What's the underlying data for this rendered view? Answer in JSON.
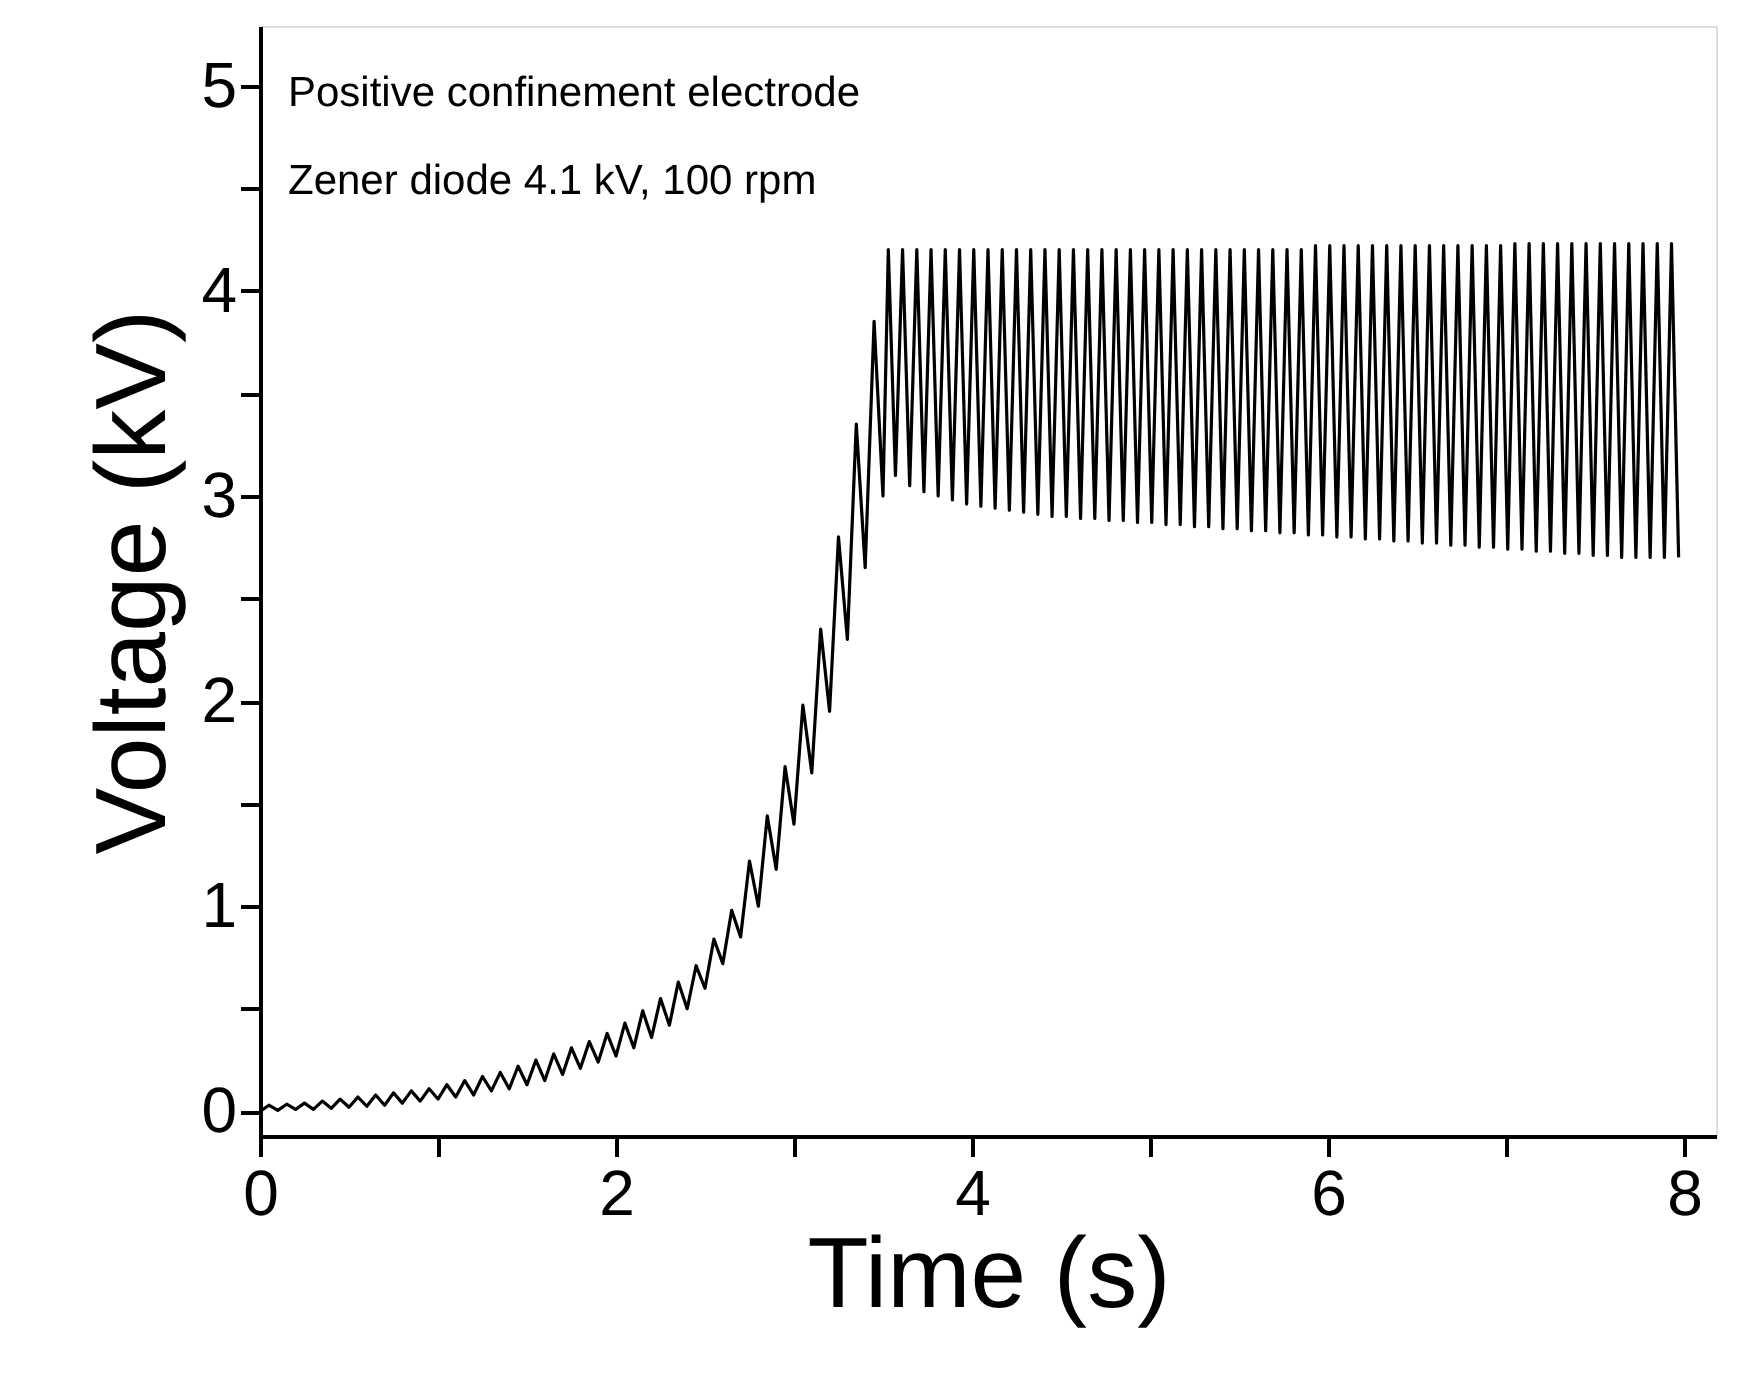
{
  "chart_data": {
    "type": "line",
    "xlabel": "Time (s)",
    "ylabel": "Voltage (kV)",
    "annotations": [
      "Positive confinement electrode",
      "Zener diode  4.1 kV, 100 rpm"
    ],
    "xlim": [
      0,
      8.18
    ],
    "ylim": [
      -0.12,
      5.29
    ],
    "xticks": [
      0,
      {
        "value": 1,
        "label": null
      },
      2,
      {
        "value": 3,
        "label": null
      },
      4,
      {
        "value": 5,
        "label": null
      },
      6,
      {
        "value": 7,
        "label": null
      },
      8
    ],
    "yticks": [
      0,
      {
        "value": 0.5,
        "label": null
      },
      1,
      {
        "value": 1.5,
        "label": null
      },
      2,
      {
        "value": 2.5,
        "label": null
      },
      3,
      {
        "value": 3.5,
        "label": null
      },
      4,
      {
        "value": 4.5,
        "label": null
      },
      5
    ],
    "grid": false,
    "series": [
      {
        "color": "#000000",
        "x": [
          0,
          0.05,
          0.1,
          0.15,
          0.2,
          0.25,
          0.3,
          0.35,
          0.4,
          0.45,
          0.5,
          0.55,
          0.6,
          0.65,
          0.7,
          0.75,
          0.8,
          0.85,
          0.9,
          0.95,
          1.0,
          1.05,
          1.1,
          1.15,
          1.2,
          1.25,
          1.3,
          1.35,
          1.4,
          1.45,
          1.5,
          1.55,
          1.6,
          1.65,
          1.7,
          1.75,
          1.8,
          1.85,
          1.9,
          1.95,
          2.0,
          2.05,
          2.1,
          2.15,
          2.2,
          2.25,
          2.3,
          2.35,
          2.4,
          2.45,
          2.5,
          2.55,
          2.6,
          2.65,
          2.7,
          2.75,
          2.8,
          2.85,
          2.9,
          2.95,
          3.0,
          3.05,
          3.1,
          3.15,
          3.2,
          3.25,
          3.3,
          3.35,
          3.4,
          3.45,
          3.5,
          3.53,
          3.57,
          3.61,
          3.65,
          3.69,
          3.73,
          3.77,
          3.81,
          3.85,
          3.89,
          3.93,
          3.97,
          4.01,
          4.05,
          4.09,
          4.13,
          4.17,
          4.21,
          4.25,
          4.29,
          4.33,
          4.37,
          4.41,
          4.45,
          4.49,
          4.53,
          4.57,
          4.61,
          4.65,
          4.69,
          4.73,
          4.77,
          4.81,
          4.85,
          4.89,
          4.93,
          4.97,
          5.01,
          5.05,
          5.09,
          5.13,
          5.17,
          5.21,
          5.25,
          5.29,
          5.33,
          5.37,
          5.41,
          5.45,
          5.49,
          5.53,
          5.57,
          5.61,
          5.65,
          5.69,
          5.73,
          5.77,
          5.81,
          5.85,
          5.89,
          5.93,
          5.97,
          6.01,
          6.05,
          6.09,
          6.13,
          6.17,
          6.21,
          6.25,
          6.29,
          6.33,
          6.37,
          6.41,
          6.45,
          6.49,
          6.53,
          6.57,
          6.61,
          6.65,
          6.69,
          6.73,
          6.77,
          6.81,
          6.85,
          6.89,
          6.93,
          6.97,
          7.01,
          7.05,
          7.09,
          7.13,
          7.17,
          7.21,
          7.25,
          7.29,
          7.33,
          7.37,
          7.41,
          7.45,
          7.49,
          7.53,
          7.57,
          7.61,
          7.65,
          7.69,
          7.73,
          7.77,
          7.81,
          7.85,
          7.89,
          7.93,
          7.97
        ],
        "values": [
          0.0,
          0.03,
          0.005,
          0.035,
          0.01,
          0.04,
          0.01,
          0.05,
          0.015,
          0.06,
          0.02,
          0.07,
          0.025,
          0.08,
          0.03,
          0.09,
          0.04,
          0.1,
          0.05,
          0.11,
          0.06,
          0.13,
          0.07,
          0.15,
          0.08,
          0.17,
          0.1,
          0.19,
          0.11,
          0.22,
          0.13,
          0.25,
          0.15,
          0.28,
          0.18,
          0.31,
          0.21,
          0.34,
          0.24,
          0.38,
          0.27,
          0.43,
          0.31,
          0.49,
          0.36,
          0.55,
          0.42,
          0.63,
          0.5,
          0.71,
          0.6,
          0.84,
          0.72,
          0.98,
          0.85,
          1.22,
          1.0,
          1.44,
          1.18,
          1.68,
          1.4,
          1.98,
          1.65,
          2.35,
          1.95,
          2.8,
          2.3,
          3.35,
          2.65,
          3.85,
          3.0,
          4.2,
          3.1,
          4.2,
          3.05,
          4.2,
          3.02,
          4.2,
          3.0,
          4.2,
          2.98,
          4.2,
          2.96,
          4.2,
          2.95,
          4.2,
          2.94,
          4.2,
          2.93,
          4.2,
          2.92,
          4.2,
          2.91,
          4.2,
          2.9,
          4.2,
          2.9,
          4.2,
          2.89,
          4.2,
          2.89,
          4.2,
          2.88,
          4.2,
          2.88,
          4.2,
          2.87,
          4.2,
          2.87,
          4.2,
          2.86,
          4.2,
          2.86,
          4.2,
          2.85,
          4.2,
          2.85,
          4.2,
          2.84,
          4.2,
          2.84,
          4.2,
          2.83,
          4.2,
          2.83,
          4.2,
          2.82,
          4.2,
          2.82,
          4.2,
          2.81,
          4.22,
          2.81,
          4.22,
          2.8,
          4.22,
          2.8,
          4.22,
          2.79,
          4.22,
          2.79,
          4.22,
          2.78,
          4.22,
          2.78,
          4.22,
          2.77,
          4.22,
          2.77,
          4.22,
          2.76,
          4.22,
          2.76,
          4.22,
          2.75,
          4.22,
          2.75,
          4.22,
          2.74,
          4.23,
          2.74,
          4.23,
          2.73,
          4.23,
          2.73,
          4.23,
          2.72,
          4.23,
          2.72,
          4.23,
          2.71,
          4.23,
          2.71,
          4.23,
          2.7,
          4.23,
          2.7,
          4.23,
          2.7,
          4.23,
          2.7,
          4.23,
          2.7
        ]
      }
    ]
  }
}
